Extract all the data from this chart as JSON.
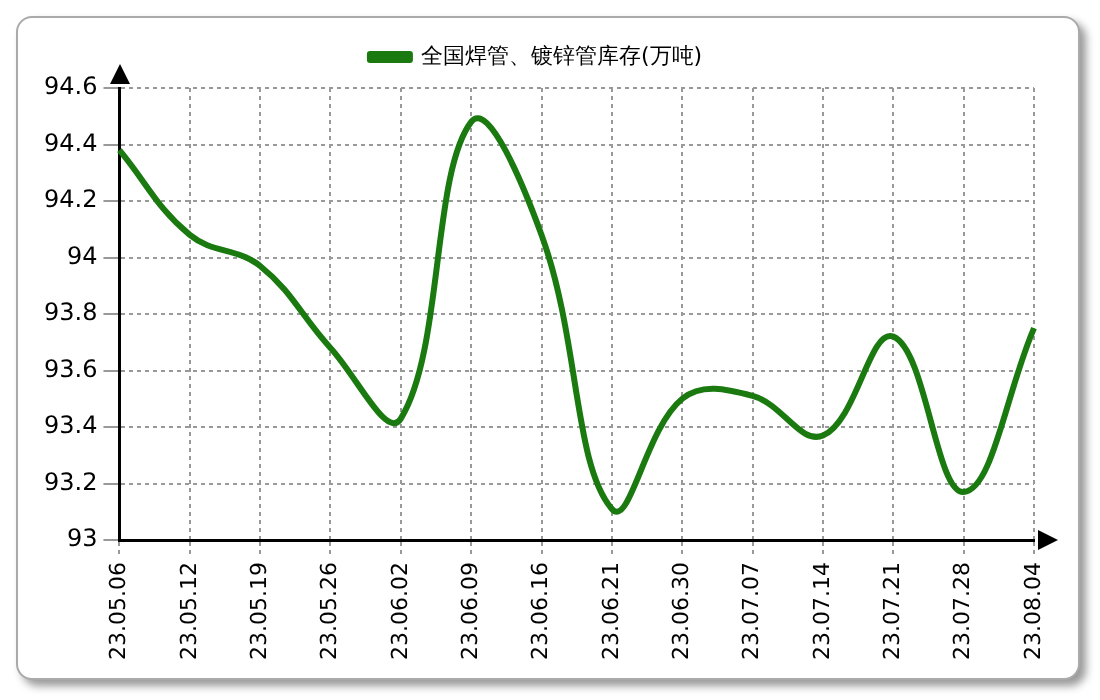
{
  "chart_data": {
    "type": "line",
    "categories": [
      "23.05.06",
      "23.05.12",
      "23.05.19",
      "23.05.26",
      "23.06.02",
      "23.06.09",
      "23.06.16",
      "23.06.21",
      "23.06.30",
      "23.07.07",
      "23.07.14",
      "23.07.21",
      "23.07.28",
      "23.08.04"
    ],
    "series": [
      {
        "name": "全国焊管、镀锌管库存(万吨)",
        "color": "#1a7a10",
        "values": [
          94.38,
          94.08,
          93.97,
          93.68,
          93.43,
          94.48,
          94.08,
          93.11,
          93.5,
          93.51,
          93.37,
          93.72,
          93.17,
          93.75
        ]
      }
    ],
    "ylim": [
      93,
      94.6
    ],
    "yticks": [
      93,
      93.2,
      93.4,
      93.6,
      93.8,
      94,
      94.2,
      94.4,
      94.6
    ],
    "grid": true,
    "legend": "top",
    "marker": "none",
    "line_style": "solid"
  }
}
